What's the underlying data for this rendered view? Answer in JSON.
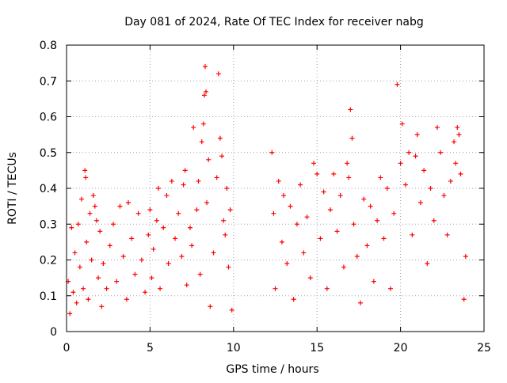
{
  "chart_data": {
    "type": "scatter",
    "title": "Day 081 of 2024, Rate Of TEC Index for receiver nabg",
    "xlabel": "GPS time / hours",
    "ylabel": "ROTI / TECUs",
    "xlim": [
      0,
      25
    ],
    "ylim": [
      0,
      0.8
    ],
    "x_ticks": [
      "0",
      "5",
      "10",
      "15",
      "20",
      "25"
    ],
    "y_ticks": [
      "0",
      "0.1",
      "0.2",
      "0.3",
      "0.4",
      "0.5",
      "0.6",
      "0.7",
      "0.8"
    ],
    "grid": true,
    "marker": "+",
    "color": "#ff0000",
    "series": [
      {
        "points": [
          [
            0.1,
            0.14
          ],
          [
            0.2,
            0.05
          ],
          [
            0.3,
            0.29
          ],
          [
            0.4,
            0.11
          ],
          [
            0.5,
            0.22
          ],
          [
            0.6,
            0.08
          ],
          [
            0.7,
            0.3
          ],
          [
            0.8,
            0.18
          ],
          [
            0.9,
            0.37
          ],
          [
            1.0,
            0.12
          ],
          [
            1.1,
            0.45
          ],
          [
            1.15,
            0.43
          ],
          [
            1.2,
            0.25
          ],
          [
            1.3,
            0.09
          ],
          [
            1.4,
            0.33
          ],
          [
            1.5,
            0.2
          ],
          [
            1.6,
            0.38
          ],
          [
            1.7,
            0.35
          ],
          [
            1.8,
            0.31
          ],
          [
            1.9,
            0.15
          ],
          [
            2.0,
            0.28
          ],
          [
            2.1,
            0.07
          ],
          [
            2.2,
            0.19
          ],
          [
            2.4,
            0.12
          ],
          [
            2.6,
            0.24
          ],
          [
            2.8,
            0.3
          ],
          [
            3.0,
            0.14
          ],
          [
            3.2,
            0.35
          ],
          [
            3.4,
            0.21
          ],
          [
            3.6,
            0.09
          ],
          [
            3.7,
            0.36
          ],
          [
            3.9,
            0.26
          ],
          [
            4.1,
            0.16
          ],
          [
            4.3,
            0.33
          ],
          [
            4.5,
            0.2
          ],
          [
            4.7,
            0.11
          ],
          [
            4.9,
            0.27
          ],
          [
            5.0,
            0.34
          ],
          [
            5.1,
            0.15
          ],
          [
            5.2,
            0.23
          ],
          [
            5.4,
            0.31
          ],
          [
            5.5,
            0.4
          ],
          [
            5.6,
            0.12
          ],
          [
            5.8,
            0.29
          ],
          [
            6.0,
            0.38
          ],
          [
            6.1,
            0.19
          ],
          [
            6.3,
            0.42
          ],
          [
            6.5,
            0.26
          ],
          [
            6.7,
            0.33
          ],
          [
            6.9,
            0.21
          ],
          [
            7.0,
            0.41
          ],
          [
            7.1,
            0.45
          ],
          [
            7.2,
            0.13
          ],
          [
            7.4,
            0.29
          ],
          [
            7.5,
            0.24
          ],
          [
            7.6,
            0.57
          ],
          [
            7.8,
            0.34
          ],
          [
            7.9,
            0.42
          ],
          [
            8.0,
            0.16
          ],
          [
            8.1,
            0.53
          ],
          [
            8.2,
            0.58
          ],
          [
            8.25,
            0.66
          ],
          [
            8.3,
            0.74
          ],
          [
            8.35,
            0.67
          ],
          [
            8.4,
            0.36
          ],
          [
            8.5,
            0.48
          ],
          [
            8.6,
            0.07
          ],
          [
            8.8,
            0.22
          ],
          [
            9.0,
            0.43
          ],
          [
            9.1,
            0.72
          ],
          [
            9.2,
            0.54
          ],
          [
            9.3,
            0.49
          ],
          [
            9.4,
            0.31
          ],
          [
            9.5,
            0.27
          ],
          [
            9.6,
            0.4
          ],
          [
            9.7,
            0.18
          ],
          [
            9.8,
            0.34
          ],
          [
            9.9,
            0.06
          ],
          [
            12.3,
            0.5
          ],
          [
            12.4,
            0.33
          ],
          [
            12.5,
            0.12
          ],
          [
            12.7,
            0.42
          ],
          [
            12.9,
            0.25
          ],
          [
            13.0,
            0.38
          ],
          [
            13.2,
            0.19
          ],
          [
            13.4,
            0.35
          ],
          [
            13.6,
            0.09
          ],
          [
            13.8,
            0.3
          ],
          [
            14.0,
            0.41
          ],
          [
            14.2,
            0.22
          ],
          [
            14.4,
            0.32
          ],
          [
            14.6,
            0.15
          ],
          [
            14.8,
            0.47
          ],
          [
            15.0,
            0.44
          ],
          [
            15.2,
            0.26
          ],
          [
            15.4,
            0.39
          ],
          [
            15.6,
            0.12
          ],
          [
            15.8,
            0.34
          ],
          [
            16.0,
            0.44
          ],
          [
            16.2,
            0.28
          ],
          [
            16.4,
            0.38
          ],
          [
            16.6,
            0.18
          ],
          [
            16.8,
            0.47
          ],
          [
            16.9,
            0.43
          ],
          [
            17.0,
            0.62
          ],
          [
            17.1,
            0.54
          ],
          [
            17.2,
            0.3
          ],
          [
            17.4,
            0.21
          ],
          [
            17.6,
            0.08
          ],
          [
            17.8,
            0.37
          ],
          [
            18.0,
            0.24
          ],
          [
            18.2,
            0.35
          ],
          [
            18.4,
            0.14
          ],
          [
            18.6,
            0.31
          ],
          [
            18.8,
            0.43
          ],
          [
            19.0,
            0.26
          ],
          [
            19.2,
            0.4
          ],
          [
            19.4,
            0.12
          ],
          [
            19.6,
            0.33
          ],
          [
            19.8,
            0.69
          ],
          [
            20.0,
            0.47
          ],
          [
            20.1,
            0.58
          ],
          [
            20.3,
            0.41
          ],
          [
            20.5,
            0.5
          ],
          [
            20.7,
            0.27
          ],
          [
            20.9,
            0.49
          ],
          [
            21.0,
            0.55
          ],
          [
            21.2,
            0.36
          ],
          [
            21.4,
            0.45
          ],
          [
            21.6,
            0.19
          ],
          [
            21.8,
            0.4
          ],
          [
            22.0,
            0.31
          ],
          [
            22.2,
            0.57
          ],
          [
            22.4,
            0.5
          ],
          [
            22.6,
            0.38
          ],
          [
            22.8,
            0.27
          ],
          [
            23.0,
            0.42
          ],
          [
            23.2,
            0.53
          ],
          [
            23.3,
            0.47
          ],
          [
            23.4,
            0.57
          ],
          [
            23.5,
            0.55
          ],
          [
            23.6,
            0.44
          ],
          [
            23.8,
            0.09
          ],
          [
            23.9,
            0.21
          ]
        ]
      }
    ]
  }
}
